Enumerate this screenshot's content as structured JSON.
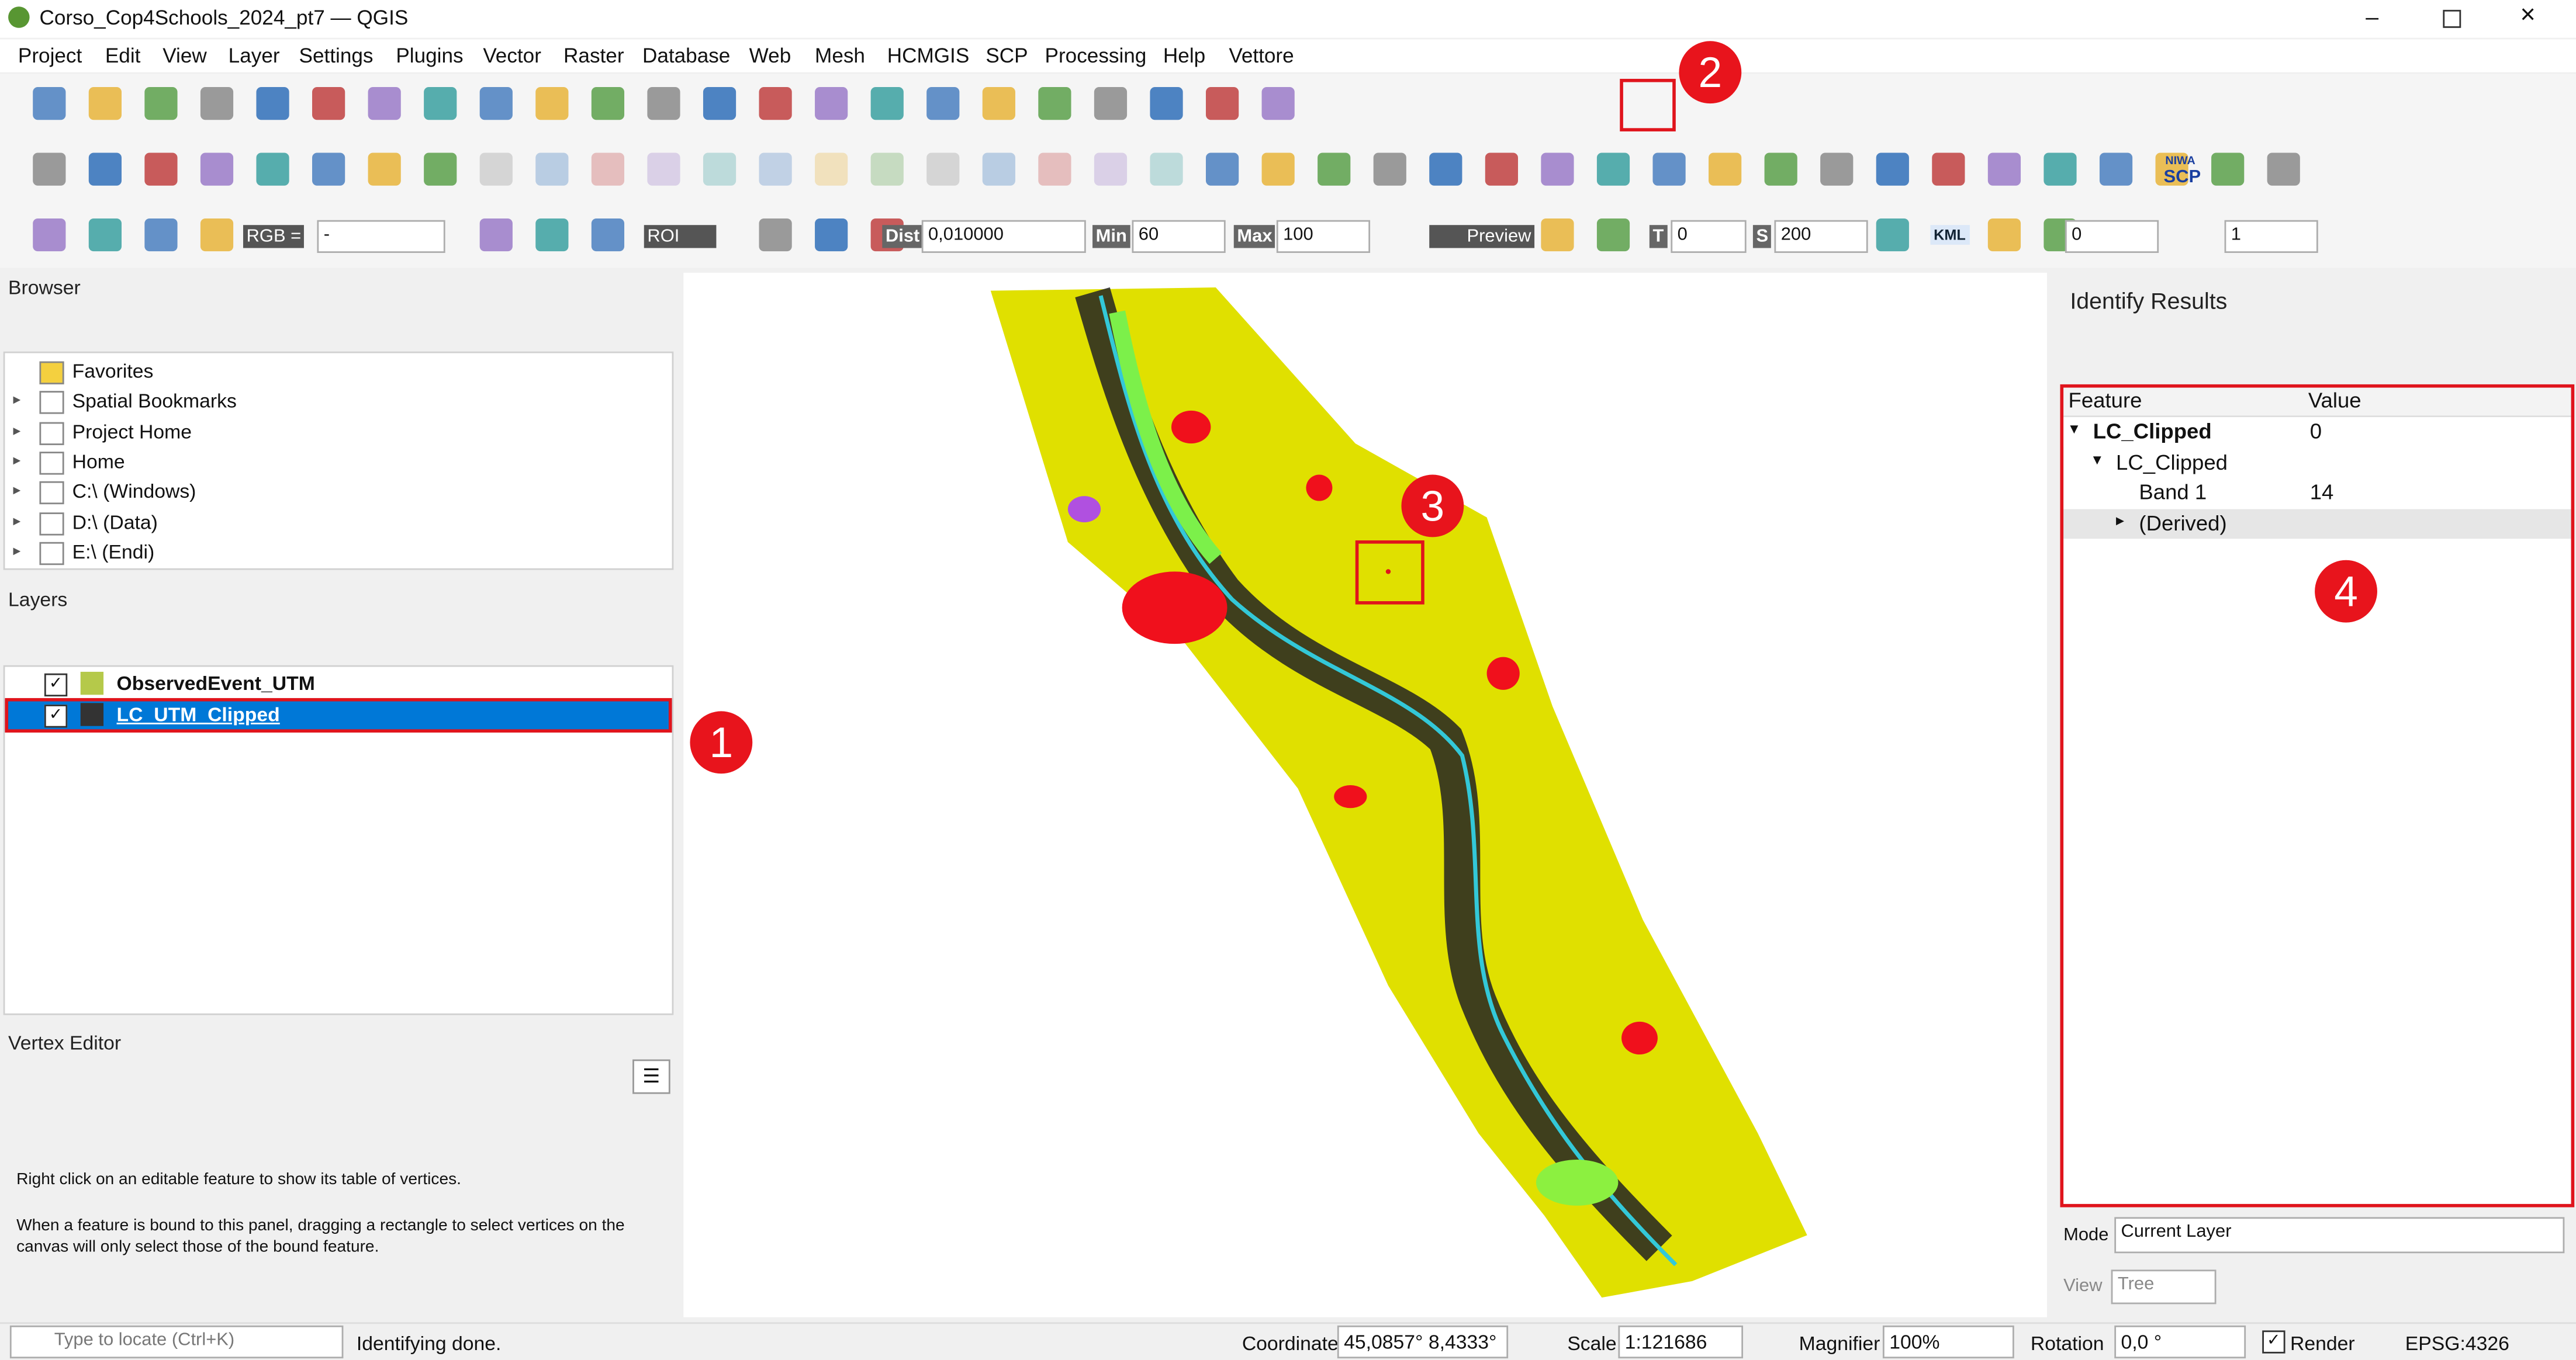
{
  "window": {
    "title": "Corso_Cop4Schools_2024_pt7 — QGIS"
  },
  "menu": [
    "Project",
    "Edit",
    "View",
    "Layer",
    "Settings",
    "Plugins",
    "Vector",
    "Raster",
    "Database",
    "Web",
    "Mesh",
    "HCMGIS",
    "SCP",
    "Processing",
    "Help",
    "Vettore"
  ],
  "toolbar": {
    "rgb_label": "RGB =",
    "band_combo": "-",
    "roi": "ROI",
    "dist_label": "Dist",
    "dist_value": "0,010000",
    "min_label": "Min",
    "min_value": "60",
    "max_label": "Max",
    "max_value": "100",
    "preview": "Preview",
    "t_label": "T",
    "t_value": "0",
    "s_label": "S",
    "s_value": "200",
    "kml": "KML",
    "niwa": "NIWA",
    "scp": "SCP",
    "field_a": "0",
    "field_b": "1"
  },
  "browser": {
    "title": "Browser",
    "items": [
      "Favorites",
      "Spatial Bookmarks",
      "Project Home",
      "Home",
      "C:\\ (Windows)",
      "D:\\ (Data)",
      "E:\\ (Endi)"
    ]
  },
  "layers": {
    "title": "Layers",
    "items": [
      "ObservedEvent_UTM",
      "LC_UTM_Clipped"
    ]
  },
  "vertex_editor": {
    "title": "Vertex Editor",
    "hint_1": "Right click on an editable feature to show its table of vertices.",
    "hint_2": "When a feature is bound to this panel, dragging a rectangle to select vertices on the canvas will only select those of the bound feature."
  },
  "identify": {
    "title": "Identify Results",
    "headers": [
      "Feature",
      "Value"
    ],
    "rows": [
      {
        "feature": "LC_Clipped",
        "value": "0"
      },
      {
        "feature": "LC_Clipped"
      },
      {
        "feature": "Band 1",
        "value": "14"
      },
      {
        "feature": "(Derived)"
      }
    ],
    "mode_label": "Mode",
    "mode_value": "Current Layer",
    "view_label": "View",
    "view_value": "Tree"
  },
  "status": {
    "locate_placeholder": "Type to locate (Ctrl+K)",
    "message": "Identifying done.",
    "coordinate_label": "Coordinate",
    "coordinate": "45,0857°  8,4333°",
    "scale_label": "Scale",
    "scale": "1:121686",
    "magnifier_label": "Magnifier",
    "magnifier": "100%",
    "rotation_label": "Rotation",
    "rotation": "0,0 °",
    "render": "Render",
    "crs": "EPSG:4326"
  },
  "annotations": [
    "1",
    "2",
    "3",
    "4"
  ]
}
